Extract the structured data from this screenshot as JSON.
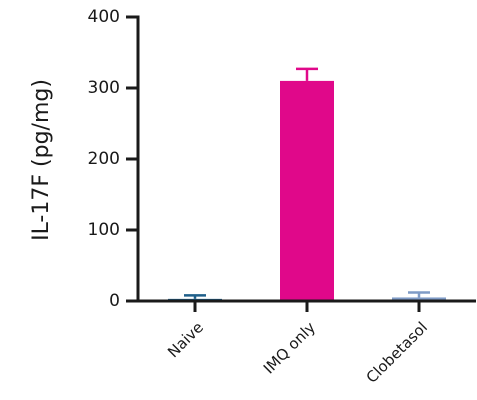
{
  "chart_data": {
    "type": "bar",
    "title": "",
    "xlabel": "",
    "ylabel": "IL-17F (pg/mg)",
    "ylim": [
      0,
      400
    ],
    "yticks": [
      0,
      100,
      200,
      300,
      400
    ],
    "categories": [
      "Naive",
      "IMQ only",
      "Clobetasol"
    ],
    "values": [
      3,
      310,
      5
    ],
    "errors": [
      5,
      17,
      7
    ],
    "colors": [
      "#1e5f8a",
      "#e0088a",
      "#7f9bc6"
    ],
    "grid": false,
    "legend": "none"
  }
}
